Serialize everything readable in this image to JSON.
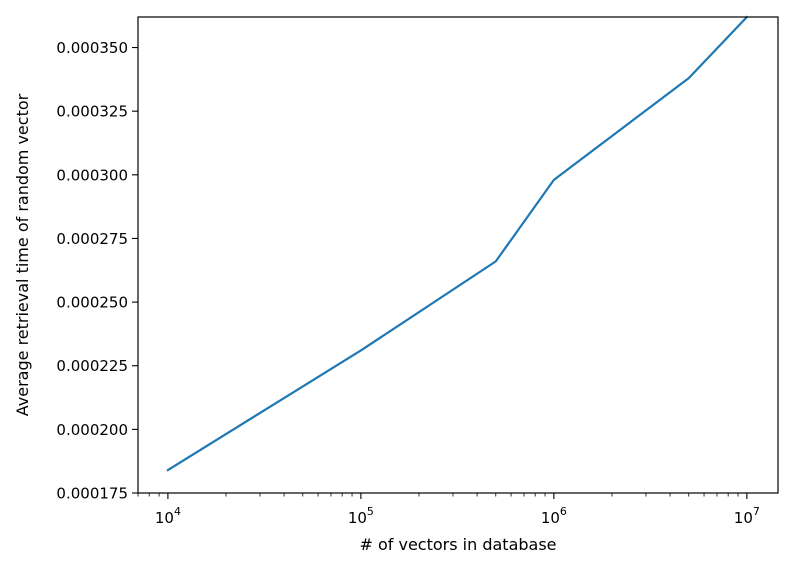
{
  "chart_data": {
    "type": "line",
    "title": "",
    "xlabel": "# of vectors in database",
    "ylabel": "Average retrieval time of random vector",
    "xscale": "log",
    "xlim": [
      7000,
      14500000
    ],
    "ylim": [
      0.000175,
      0.000362
    ],
    "grid": false,
    "legend": "none",
    "line_color": "#1f77b4",
    "x_ticks": [
      {
        "base": "10",
        "exp": "4",
        "value": 10000
      },
      {
        "base": "10",
        "exp": "5",
        "value": 100000
      },
      {
        "base": "10",
        "exp": "6",
        "value": 1000000
      },
      {
        "base": "10",
        "exp": "7",
        "value": 10000000
      }
    ],
    "y_ticks": [
      {
        "label": "0.000175",
        "value": 0.000175
      },
      {
        "label": "0.000200",
        "value": 0.0002
      },
      {
        "label": "0.000225",
        "value": 0.000225
      },
      {
        "label": "0.000250",
        "value": 0.00025
      },
      {
        "label": "0.000275",
        "value": 0.000275
      },
      {
        "label": "0.000300",
        "value": 0.0003
      },
      {
        "label": "0.000325",
        "value": 0.000325
      },
      {
        "label": "0.000350",
        "value": 0.00035
      }
    ],
    "series": [
      {
        "x": [
          10000,
          100000,
          500000,
          1000000,
          5000000,
          10000000
        ],
        "y": [
          0.000184,
          0.000231,
          0.000266,
          0.000298,
          0.000338,
          0.000362
        ]
      }
    ]
  }
}
